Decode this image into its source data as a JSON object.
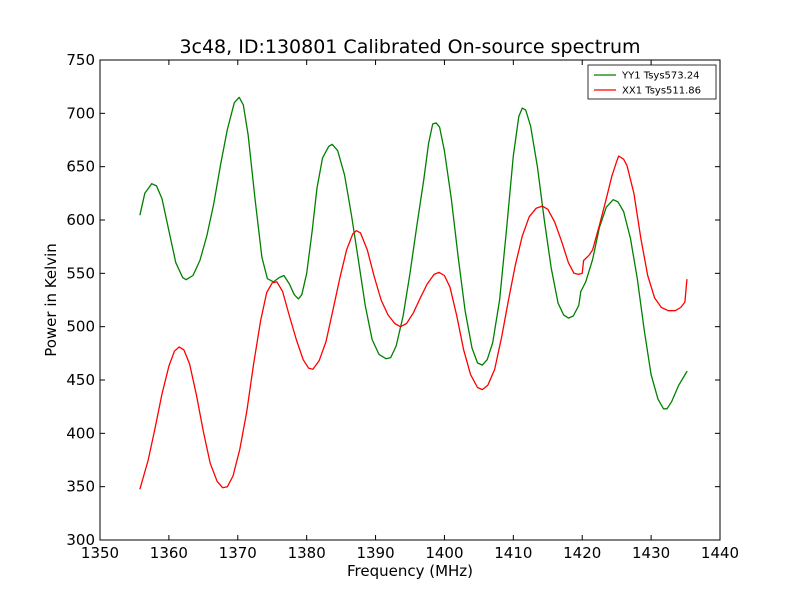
{
  "chart_data": {
    "type": "line",
    "title": "3c48, ID:130801 Calibrated On-source spectrum",
    "xlabel": "Frequency (MHz)",
    "ylabel": "Power in Kelvin",
    "xlim": [
      1350,
      1440
    ],
    "ylim": [
      300,
      750
    ],
    "xticks": [
      1350,
      1360,
      1370,
      1380,
      1390,
      1400,
      1410,
      1420,
      1430,
      1440
    ],
    "yticks": [
      300,
      350,
      400,
      450,
      500,
      550,
      600,
      650,
      700,
      750
    ],
    "grid": false,
    "legend_position": "top-right",
    "series": [
      {
        "name": "YY1 Tsys573.24",
        "color": "#008000",
        "points": [
          [
            1355.8,
            605
          ],
          [
            1356.5,
            625
          ],
          [
            1357.5,
            634
          ],
          [
            1358.2,
            632
          ],
          [
            1359,
            620
          ],
          [
            1360,
            590
          ],
          [
            1361,
            560
          ],
          [
            1362,
            546
          ],
          [
            1362.5,
            544
          ],
          [
            1363.5,
            548
          ],
          [
            1364.5,
            562
          ],
          [
            1365.5,
            585
          ],
          [
            1366.5,
            615
          ],
          [
            1367.5,
            652
          ],
          [
            1368.5,
            685
          ],
          [
            1369.5,
            710
          ],
          [
            1370.2,
            715
          ],
          [
            1370.8,
            708
          ],
          [
            1371.5,
            680
          ],
          [
            1372.5,
            620
          ],
          [
            1373.5,
            565
          ],
          [
            1374.3,
            545
          ],
          [
            1375.2,
            542
          ],
          [
            1376,
            546
          ],
          [
            1376.7,
            548
          ],
          [
            1377.5,
            540
          ],
          [
            1378.2,
            530
          ],
          [
            1378.8,
            526
          ],
          [
            1379.3,
            530
          ],
          [
            1380,
            550
          ],
          [
            1380.8,
            590
          ],
          [
            1381.5,
            630
          ],
          [
            1382.3,
            658
          ],
          [
            1383.2,
            669
          ],
          [
            1383.7,
            671
          ],
          [
            1384.5,
            665
          ],
          [
            1385.5,
            642
          ],
          [
            1386.5,
            605
          ],
          [
            1387.5,
            563
          ],
          [
            1388.5,
            520
          ],
          [
            1389.5,
            488
          ],
          [
            1390.5,
            474
          ],
          [
            1391.5,
            470
          ],
          [
            1392.2,
            471
          ],
          [
            1393,
            482
          ],
          [
            1394,
            510
          ],
          [
            1395,
            550
          ],
          [
            1396,
            595
          ],
          [
            1397,
            638
          ],
          [
            1397.7,
            672
          ],
          [
            1398.3,
            690
          ],
          [
            1398.8,
            691
          ],
          [
            1399.3,
            687
          ],
          [
            1400,
            665
          ],
          [
            1401,
            620
          ],
          [
            1402,
            565
          ],
          [
            1403,
            515
          ],
          [
            1404,
            480
          ],
          [
            1404.8,
            466
          ],
          [
            1405.5,
            464
          ],
          [
            1406.2,
            469
          ],
          [
            1407,
            485
          ],
          [
            1408,
            525
          ],
          [
            1409,
            590
          ],
          [
            1410,
            660
          ],
          [
            1410.8,
            697
          ],
          [
            1411.3,
            705
          ],
          [
            1411.8,
            703
          ],
          [
            1412.5,
            688
          ],
          [
            1413.5,
            650
          ],
          [
            1414.5,
            600
          ],
          [
            1415.5,
            555
          ],
          [
            1416.5,
            522
          ],
          [
            1417.3,
            511
          ],
          [
            1418,
            508
          ],
          [
            1418.7,
            510
          ],
          [
            1419.5,
            520
          ],
          [
            1419.8,
            533
          ],
          [
            1420.5,
            542
          ],
          [
            1421.5,
            563
          ],
          [
            1422.5,
            593
          ],
          [
            1423.5,
            612
          ],
          [
            1424.5,
            619
          ],
          [
            1425.2,
            617
          ],
          [
            1426,
            608
          ],
          [
            1427,
            583
          ],
          [
            1428,
            545
          ],
          [
            1429,
            497
          ],
          [
            1430,
            455
          ],
          [
            1431,
            432
          ],
          [
            1431.8,
            423
          ],
          [
            1432.3,
            423
          ],
          [
            1433,
            430
          ],
          [
            1434,
            445
          ],
          [
            1435.2,
            458
          ]
        ]
      },
      {
        "name": "XX1 Tsys511.86",
        "color": "#ff0000",
        "points": [
          [
            1355.8,
            348
          ],
          [
            1357,
            375
          ],
          [
            1358,
            405
          ],
          [
            1359,
            437
          ],
          [
            1360,
            463
          ],
          [
            1360.8,
            477
          ],
          [
            1361.5,
            481
          ],
          [
            1362.2,
            478
          ],
          [
            1363,
            465
          ],
          [
            1364,
            436
          ],
          [
            1365,
            402
          ],
          [
            1366,
            372
          ],
          [
            1367,
            355
          ],
          [
            1367.8,
            349
          ],
          [
            1368.5,
            350
          ],
          [
            1369.3,
            360
          ],
          [
            1370.3,
            385
          ],
          [
            1371.3,
            420
          ],
          [
            1372.3,
            465
          ],
          [
            1373.3,
            505
          ],
          [
            1374.2,
            532
          ],
          [
            1375,
            541
          ],
          [
            1375.7,
            542
          ],
          [
            1376.5,
            533
          ],
          [
            1377.5,
            510
          ],
          [
            1378.5,
            488
          ],
          [
            1379.5,
            469
          ],
          [
            1380.3,
            461
          ],
          [
            1380.9,
            460
          ],
          [
            1381.8,
            468
          ],
          [
            1382.8,
            486
          ],
          [
            1383.8,
            515
          ],
          [
            1384.8,
            545
          ],
          [
            1385.8,
            572
          ],
          [
            1386.7,
            587
          ],
          [
            1387.2,
            590
          ],
          [
            1387.8,
            588
          ],
          [
            1388.8,
            572
          ],
          [
            1389.8,
            547
          ],
          [
            1390.8,
            525
          ],
          [
            1391.8,
            511
          ],
          [
            1392.8,
            503
          ],
          [
            1393.6,
            500
          ],
          [
            1394.5,
            503
          ],
          [
            1395.5,
            513
          ],
          [
            1396.5,
            527
          ],
          [
            1397.5,
            540
          ],
          [
            1398.5,
            549
          ],
          [
            1399.2,
            551
          ],
          [
            1400,
            548
          ],
          [
            1400.8,
            537
          ],
          [
            1401.8,
            510
          ],
          [
            1402.8,
            478
          ],
          [
            1403.8,
            455
          ],
          [
            1404.8,
            443
          ],
          [
            1405.5,
            441
          ],
          [
            1406.3,
            445
          ],
          [
            1407.3,
            460
          ],
          [
            1408.3,
            490
          ],
          [
            1409.3,
            525
          ],
          [
            1410.3,
            558
          ],
          [
            1411.3,
            585
          ],
          [
            1412.3,
            603
          ],
          [
            1413.3,
            611
          ],
          [
            1414.2,
            613
          ],
          [
            1415,
            610
          ],
          [
            1416,
            598
          ],
          [
            1417,
            580
          ],
          [
            1418,
            560
          ],
          [
            1418.8,
            550
          ],
          [
            1419.5,
            549
          ],
          [
            1420,
            550
          ],
          [
            1420.2,
            562
          ],
          [
            1421,
            567
          ],
          [
            1421.5,
            572
          ],
          [
            1422.5,
            595
          ],
          [
            1423.5,
            620
          ],
          [
            1424.3,
            641
          ],
          [
            1425,
            655
          ],
          [
            1425.3,
            660
          ],
          [
            1426,
            657
          ],
          [
            1426.5,
            651
          ],
          [
            1427.5,
            625
          ],
          [
            1428.5,
            583
          ],
          [
            1429.5,
            548
          ],
          [
            1430.5,
            527
          ],
          [
            1431.5,
            518
          ],
          [
            1432.5,
            515
          ],
          [
            1433.5,
            515
          ],
          [
            1434.3,
            518
          ],
          [
            1434.9,
            523
          ],
          [
            1435.2,
            544
          ]
        ]
      }
    ]
  }
}
